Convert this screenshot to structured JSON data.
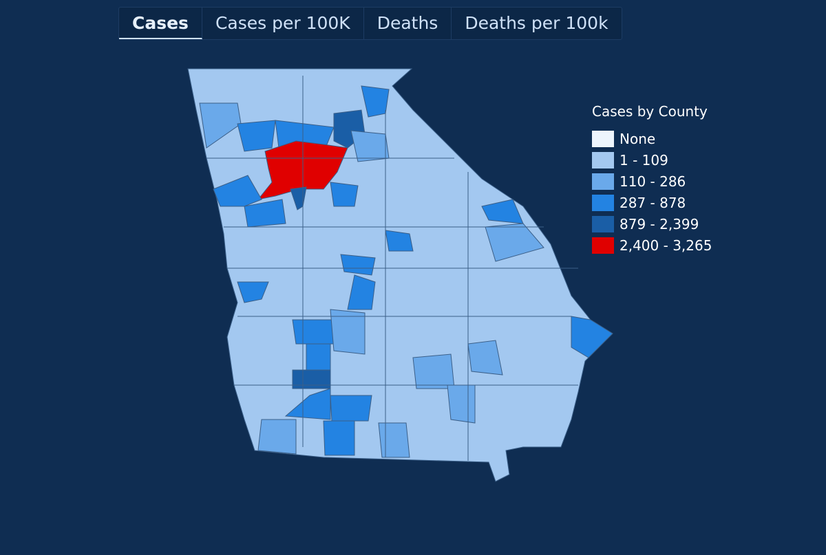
{
  "tabs": [
    {
      "label": "Cases",
      "active": true
    },
    {
      "label": "Cases per 100K",
      "active": false
    },
    {
      "label": "Deaths",
      "active": false
    },
    {
      "label": "Deaths per 100k",
      "active": false
    }
  ],
  "legend": {
    "title": "Cases by County",
    "items": [
      {
        "label": "None",
        "color": "#eef5fd"
      },
      {
        "label": "1 - 109",
        "color": "#a3c8f0"
      },
      {
        "label": "110 - 286",
        "color": "#6aa9ea"
      },
      {
        "label": "287 - 878",
        "color": "#2383e2"
      },
      {
        "label": "879 - 2,399",
        "color": "#1a5ea6"
      },
      {
        "label": "2,400 - 3,265",
        "color": "#e00000"
      }
    ]
  }
}
